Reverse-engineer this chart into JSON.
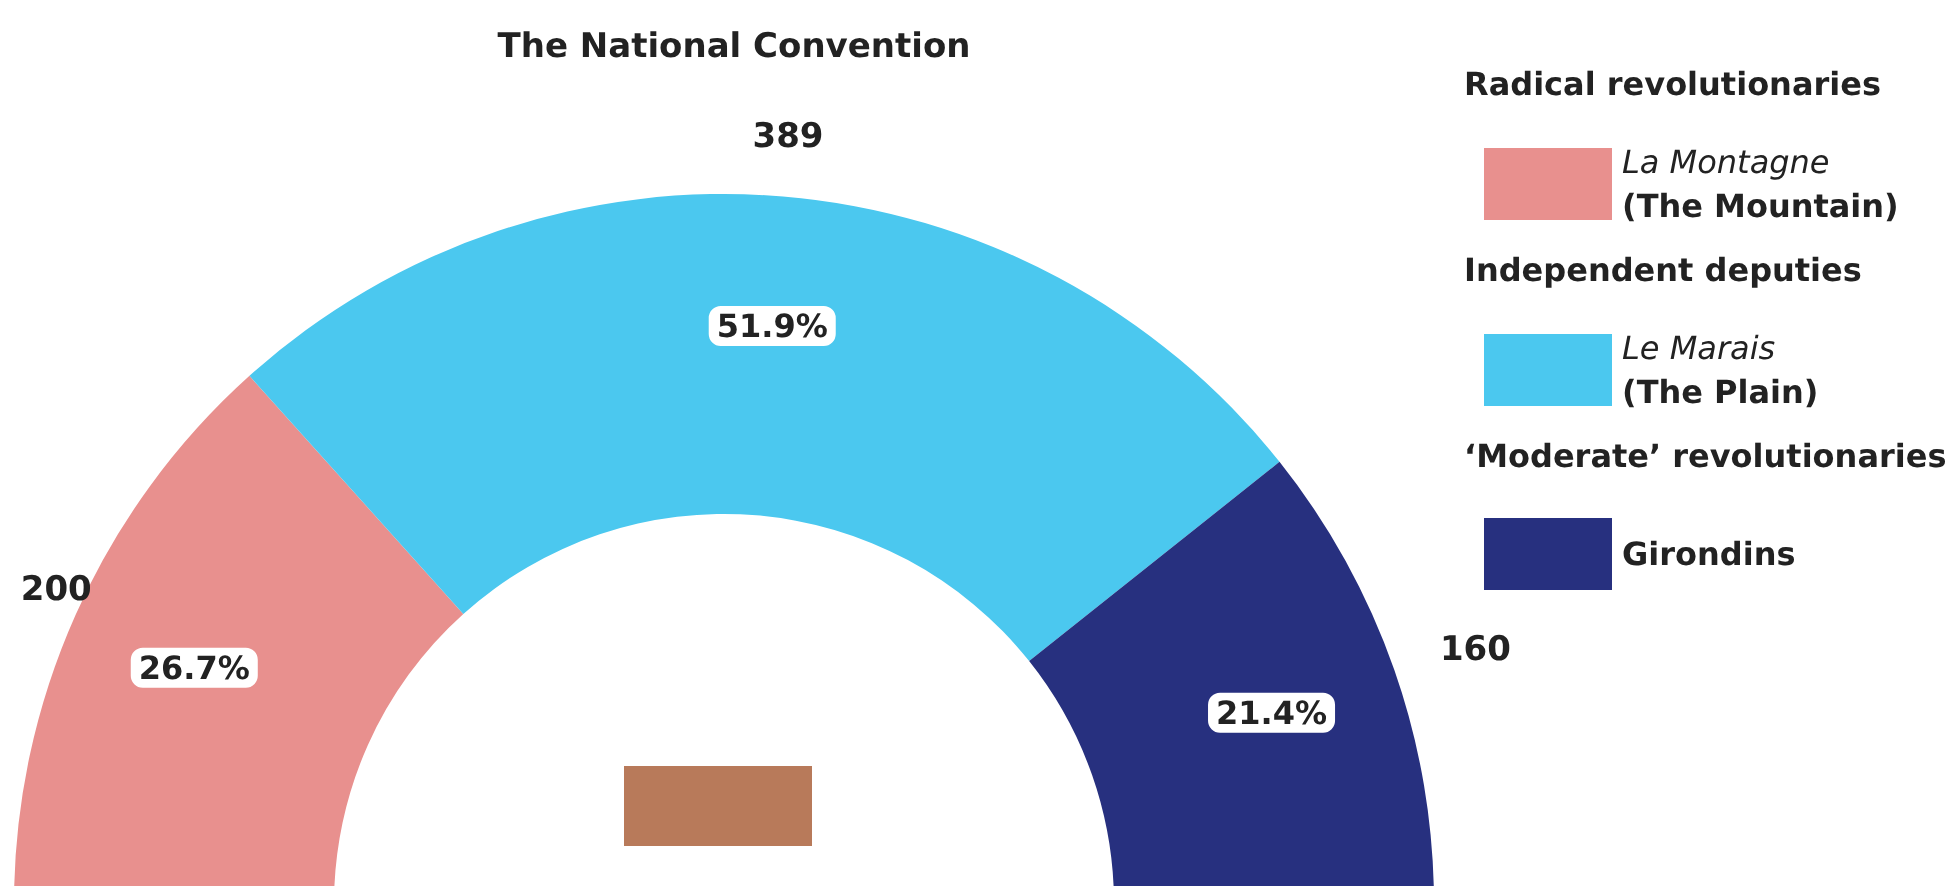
{
  "chart_data": {
    "type": "donut",
    "title": "The National Convention",
    "categories": [
      "La Montagne (The Mountain)",
      "Le Marais (The Plain)",
      "Girondins"
    ],
    "values": [
      26.7,
      51.9,
      21.4
    ],
    "colors": [
      "#e8908e",
      "#4bc8ef",
      "#27307f"
    ],
    "value_labels": [
      "26.7%",
      "51.9%",
      "21.4%"
    ],
    "legend": "right",
    "annotations": [
      "200",
      "389",
      "160",
      "Radical revolutionaries",
      "Independent deputies",
      "‘Moderate’ revolutionaries"
    ]
  }
}
